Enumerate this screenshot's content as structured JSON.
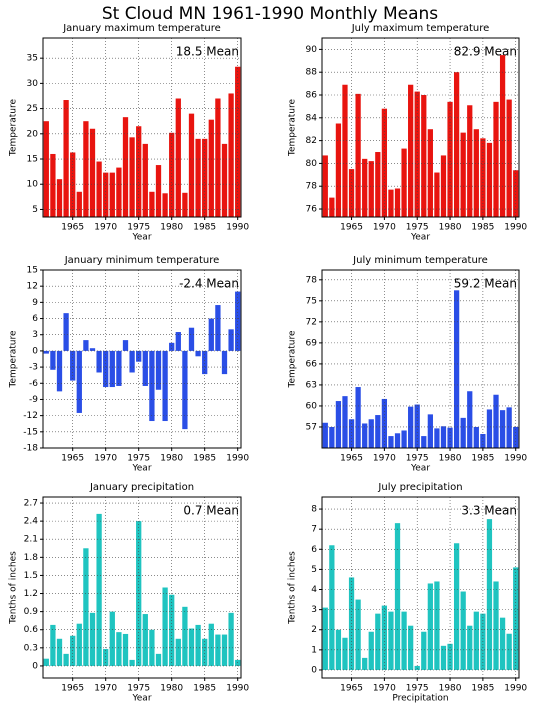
{
  "title": "St Cloud MN  1961-1990 Monthly Means",
  "chart_data": [
    {
      "type": "bar",
      "title": "January maximum temperature",
      "x_label": "Year",
      "y_label": "Temperature",
      "annotation": "18.5 Mean",
      "color": "#e8140f",
      "grid": true,
      "x": [
        1961,
        1962,
        1963,
        1964,
        1965,
        1966,
        1967,
        1968,
        1969,
        1970,
        1971,
        1972,
        1973,
        1974,
        1975,
        1976,
        1977,
        1978,
        1979,
        1980,
        1981,
        1982,
        1983,
        1984,
        1985,
        1986,
        1987,
        1988,
        1989,
        1990
      ],
      "values": [
        22.5,
        16,
        11,
        26.7,
        16.3,
        8.5,
        22.5,
        21,
        14.5,
        12.3,
        12.3,
        13.3,
        23.3,
        19.3,
        21.5,
        18,
        8.5,
        13.8,
        8.2,
        20.2,
        27,
        8.3,
        24,
        19,
        19,
        22.8,
        27,
        18,
        28,
        33.3
      ],
      "xlim": [
        1960.5,
        1990.5
      ],
      "xticks": [
        1965,
        1970,
        1975,
        1980,
        1985,
        1990
      ],
      "ylim": [
        3.5,
        39
      ],
      "yticks": [
        5,
        10,
        15,
        20,
        25,
        30,
        35
      ]
    },
    {
      "type": "bar",
      "title": "July maximum temperature",
      "x_label": "Year",
      "y_label": "Temperature",
      "annotation": "82.9 Mean",
      "color": "#e8140f",
      "grid": true,
      "x": [
        1961,
        1962,
        1963,
        1964,
        1965,
        1966,
        1967,
        1968,
        1969,
        1970,
        1971,
        1972,
        1973,
        1974,
        1975,
        1976,
        1977,
        1978,
        1979,
        1980,
        1981,
        1982,
        1983,
        1984,
        1985,
        1986,
        1987,
        1988,
        1989,
        1990
      ],
      "values": [
        80.7,
        77,
        83.5,
        86.9,
        79.5,
        86.1,
        80.4,
        80.2,
        81,
        84.8,
        77.7,
        77.8,
        81.3,
        86.9,
        86.3,
        86,
        83,
        79.2,
        80.7,
        85.4,
        88,
        82.7,
        85.1,
        83,
        82.2,
        81.8,
        85.4,
        89.5,
        85.6,
        79.4
      ],
      "xlim": [
        1960.5,
        1990.5
      ],
      "xticks": [
        1965,
        1970,
        1975,
        1980,
        1985,
        1990
      ],
      "ylim": [
        75.3,
        91
      ],
      "yticks": [
        76,
        78,
        80,
        82,
        84,
        86,
        88,
        90
      ]
    },
    {
      "type": "bar",
      "title": "January minimum temperature",
      "x_label": "Year",
      "y_label": "Temperature",
      "annotation": "-2.4 Mean",
      "color": "#2a4ee6",
      "grid": true,
      "x": [
        1961,
        1962,
        1963,
        1964,
        1965,
        1966,
        1967,
        1968,
        1969,
        1970,
        1971,
        1972,
        1973,
        1974,
        1975,
        1976,
        1977,
        1978,
        1979,
        1980,
        1981,
        1982,
        1983,
        1984,
        1985,
        1986,
        1987,
        1988,
        1989,
        1990
      ],
      "values": [
        -0.5,
        -3.5,
        -7.5,
        7,
        -5.5,
        -11.5,
        2,
        0.5,
        -4,
        -6.7,
        -6.7,
        -6.5,
        2,
        -4,
        -2,
        -6.5,
        -13,
        -7.2,
        -13,
        1.5,
        3.5,
        -14.5,
        4.3,
        -1,
        -4.3,
        6,
        8.5,
        -4.3,
        4,
        11
      ],
      "xlim": [
        1960.5,
        1990.5
      ],
      "xticks": [
        1965,
        1970,
        1975,
        1980,
        1985,
        1990
      ],
      "ylim": [
        -18,
        15
      ],
      "yticks": [
        -18,
        -15,
        -12,
        -9,
        -6,
        -3,
        0,
        3,
        6,
        9,
        12,
        15
      ]
    },
    {
      "type": "bar",
      "title": "July minimum temperature",
      "x_label": "Year",
      "y_label": "Temperature",
      "annotation": "59.2 Mean",
      "color": "#2a4ee6",
      "grid": true,
      "x": [
        1961,
        1962,
        1963,
        1964,
        1965,
        1966,
        1967,
        1968,
        1969,
        1970,
        1971,
        1972,
        1973,
        1974,
        1975,
        1976,
        1977,
        1978,
        1979,
        1980,
        1981,
        1982,
        1983,
        1984,
        1985,
        1986,
        1987,
        1988,
        1989,
        1990
      ],
      "values": [
        57.6,
        57,
        60.7,
        61.4,
        58.1,
        62.7,
        57.5,
        58.1,
        58.7,
        61,
        55.7,
        56.1,
        56.5,
        59.9,
        60.2,
        55.7,
        58.8,
        56.8,
        57.1,
        56.9,
        76.5,
        58.3,
        62.1,
        57,
        56,
        59.5,
        61.6,
        59.4,
        59.8,
        57
      ],
      "xlim": [
        1960.5,
        1990.5
      ],
      "xticks": [
        1965,
        1970,
        1975,
        1980,
        1985,
        1990
      ],
      "ylim": [
        54,
        79.4
      ],
      "yticks": [
        57,
        60,
        63,
        66,
        69,
        72,
        75,
        78
      ]
    },
    {
      "type": "bar",
      "title": "January precipitation",
      "x_label": "Year",
      "y_label": "Tenths of inches",
      "annotation": "0.7 Mean",
      "color": "#1fc4c0",
      "grid": true,
      "x": [
        1961,
        1962,
        1963,
        1964,
        1965,
        1966,
        1967,
        1968,
        1969,
        1970,
        1971,
        1972,
        1973,
        1974,
        1975,
        1976,
        1977,
        1978,
        1979,
        1980,
        1981,
        1982,
        1983,
        1984,
        1985,
        1986,
        1987,
        1988,
        1989,
        1990
      ],
      "values": [
        0.12,
        0.68,
        0.45,
        0.2,
        0.5,
        0.7,
        1.95,
        0.88,
        2.52,
        0.28,
        0.9,
        0.56,
        0.53,
        0.1,
        2.4,
        0.86,
        0.6,
        0.2,
        1.3,
        1.18,
        0.45,
        0.98,
        0.62,
        0.68,
        0.45,
        0.7,
        0.52,
        0.52,
        0.88,
        0.1
      ],
      "xlim": [
        1960.5,
        1990.5
      ],
      "xticks": [
        1965,
        1970,
        1975,
        1980,
        1985,
        1990
      ],
      "ylim": [
        -0.2,
        2.8
      ],
      "yticks": [
        0,
        0.3,
        0.6,
        0.9,
        1.2,
        1.5,
        1.8,
        2.1,
        2.4,
        2.7
      ]
    },
    {
      "type": "bar",
      "title": "July precipitation",
      "x_label": "Precipitation",
      "y_label": "Tenths of inches",
      "annotation": "3.3 Mean",
      "color": "#1fc4c0",
      "grid": true,
      "x": [
        1961,
        1962,
        1963,
        1964,
        1965,
        1966,
        1967,
        1968,
        1969,
        1970,
        1971,
        1972,
        1973,
        1974,
        1975,
        1976,
        1977,
        1978,
        1979,
        1980,
        1981,
        1982,
        1983,
        1984,
        1985,
        1986,
        1987,
        1988,
        1989,
        1990
      ],
      "values": [
        3.1,
        6.2,
        2,
        1.6,
        4.6,
        3.5,
        0.6,
        1.9,
        2.8,
        3.2,
        2.9,
        7.3,
        2.9,
        2.2,
        0.2,
        1.9,
        4.3,
        4.4,
        1.2,
        1.3,
        6.3,
        3.9,
        2.2,
        2.9,
        2.8,
        7.5,
        4.4,
        2.6,
        1.8,
        5.1
      ],
      "xlim": [
        1960.5,
        1990.5
      ],
      "xticks": [
        1965,
        1970,
        1975,
        1980,
        1985,
        1990
      ],
      "ylim": [
        -0.4,
        8.6
      ],
      "yticks": [
        0,
        1,
        2,
        3,
        4,
        5,
        6,
        7,
        8
      ]
    }
  ]
}
